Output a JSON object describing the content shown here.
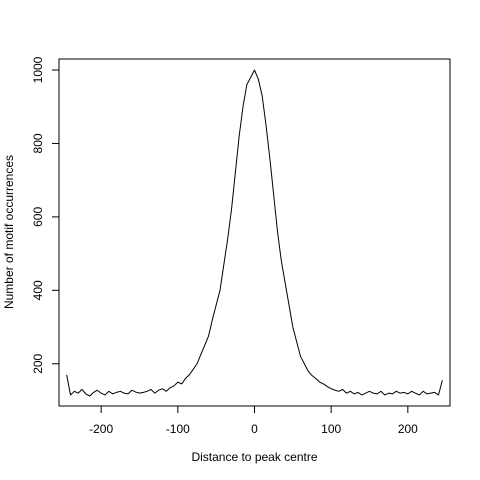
{
  "chart_data": {
    "type": "line",
    "xlabel": "Distance to peak centre",
    "ylabel": "Number of motif occurrences",
    "xlim": [
      -255,
      255
    ],
    "ylim": [
      85,
      1030
    ],
    "x_ticks": [
      -200,
      -100,
      0,
      100,
      200
    ],
    "y_ticks": [
      200,
      400,
      600,
      800,
      1000
    ],
    "grid": false,
    "legend": "none",
    "series": [
      {
        "color": "#000000",
        "x": [
          -245,
          -240,
          -235,
          -230,
          -225,
          -220,
          -215,
          -210,
          -205,
          -200,
          -195,
          -190,
          -185,
          -180,
          -175,
          -170,
          -165,
          -160,
          -155,
          -150,
          -145,
          -140,
          -135,
          -130,
          -125,
          -120,
          -115,
          -110,
          -105,
          -100,
          -95,
          -90,
          -85,
          -80,
          -75,
          -70,
          -65,
          -60,
          -55,
          -50,
          -45,
          -40,
          -35,
          -30,
          -25,
          -20,
          -15,
          -10,
          -5,
          0,
          5,
          10,
          15,
          20,
          25,
          30,
          35,
          40,
          45,
          50,
          55,
          60,
          65,
          70,
          75,
          80,
          85,
          90,
          95,
          100,
          105,
          110,
          115,
          120,
          125,
          130,
          135,
          140,
          145,
          150,
          155,
          160,
          165,
          170,
          175,
          180,
          185,
          190,
          195,
          200,
          205,
          210,
          215,
          220,
          225,
          230,
          235,
          240,
          245
        ],
        "values": [
          170,
          115,
          125,
          120,
          130,
          118,
          112,
          122,
          128,
          120,
          115,
          125,
          118,
          122,
          125,
          120,
          118,
          128,
          123,
          120,
          122,
          125,
          130,
          120,
          128,
          132,
          125,
          135,
          140,
          150,
          145,
          160,
          170,
          185,
          200,
          225,
          250,
          275,
          320,
          360,
          400,
          470,
          540,
          620,
          720,
          820,
          900,
          960,
          980,
          1000,
          975,
          930,
          850,
          760,
          660,
          560,
          480,
          420,
          360,
          300,
          260,
          220,
          200,
          180,
          168,
          160,
          150,
          145,
          138,
          132,
          128,
          125,
          130,
          120,
          125,
          118,
          122,
          115,
          120,
          125,
          120,
          118,
          125,
          115,
          120,
          118,
          125,
          120,
          122,
          118,
          125,
          120,
          115,
          125,
          118,
          120,
          122,
          115,
          155
        ]
      }
    ]
  }
}
